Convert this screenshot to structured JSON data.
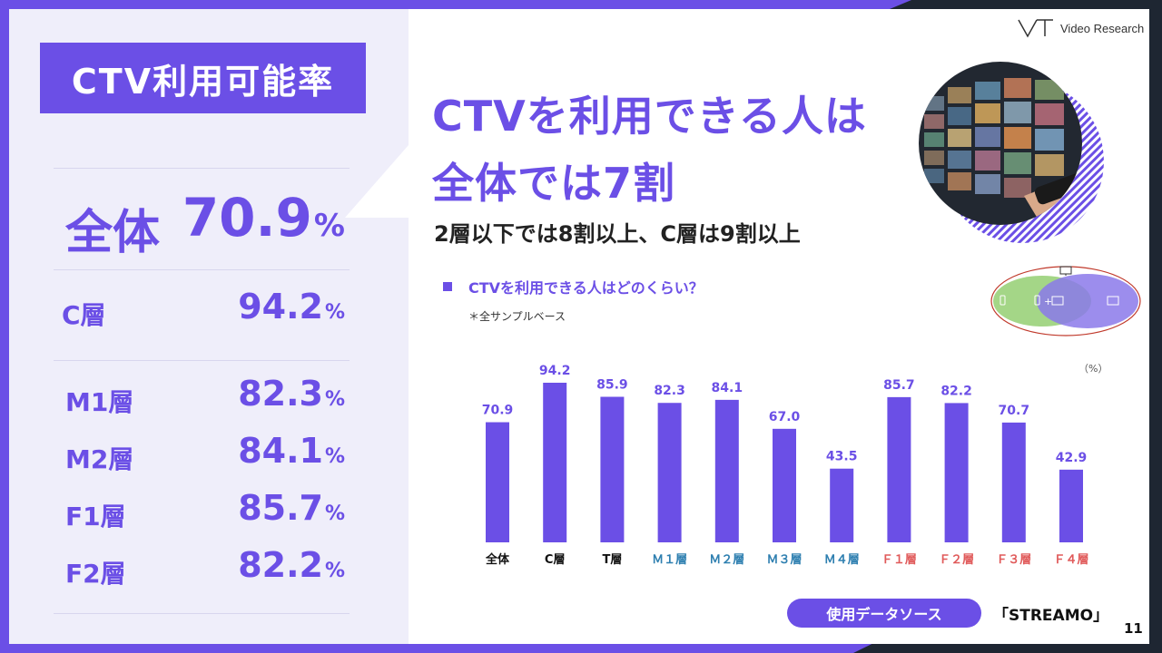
{
  "left": {
    "title": "CTV利用可能率",
    "overall": {
      "label": "全体",
      "value": "70.9",
      "unit": "%"
    },
    "segments": [
      {
        "label": "C層",
        "value": "94.2",
        "unit": "%"
      },
      {
        "label": "M1層",
        "value": "82.3",
        "unit": "%"
      },
      {
        "label": "M2層",
        "value": "84.1",
        "unit": "%"
      },
      {
        "label": "F1層",
        "value": "85.7",
        "unit": "%"
      },
      {
        "label": "F2層",
        "value": "82.2",
        "unit": "%"
      }
    ]
  },
  "logo": {
    "text": "Video Research"
  },
  "headline": {
    "line1": "CTVを利用できる人は",
    "line2": "全体では7割",
    "sub": "2層以下では8割以上、C層は9割以上"
  },
  "question": {
    "text": "CTVを利用できる人はどのくらい？",
    "note": "＊全サンプルベース"
  },
  "venn": {
    "center_label": "+"
  },
  "chart_unit": "（%）",
  "chart_data": {
    "type": "bar",
    "categories": [
      "全体",
      "C層",
      "T層",
      "Ｍ１層",
      "Ｍ２層",
      "Ｍ３層",
      "Ｍ４層",
      "Ｆ１層",
      "Ｆ２層",
      "Ｆ３層",
      "Ｆ４層"
    ],
    "values": [
      70.9,
      94.2,
      85.9,
      82.3,
      84.1,
      67.0,
      43.5,
      85.7,
      82.2,
      70.7,
      42.9
    ],
    "value_labels": [
      "70.9",
      "94.2",
      "85.9",
      "82.3",
      "84.1",
      "67.0",
      "43.5",
      "85.7",
      "82.2",
      "70.7",
      "42.9"
    ],
    "category_colors": [
      "#111111",
      "#111111",
      "#111111",
      "#2e7fb0",
      "#2e7fb0",
      "#2e7fb0",
      "#2e7fb0",
      "#e05a5a",
      "#e05a5a",
      "#e05a5a",
      "#e05a5a"
    ],
    "bar_color": "#6b4fe6",
    "ylim": [
      0,
      100
    ],
    "grid": false
  },
  "source": {
    "label": "使用データソース",
    "name": "「STREAMO」"
  },
  "page_number": "11"
}
